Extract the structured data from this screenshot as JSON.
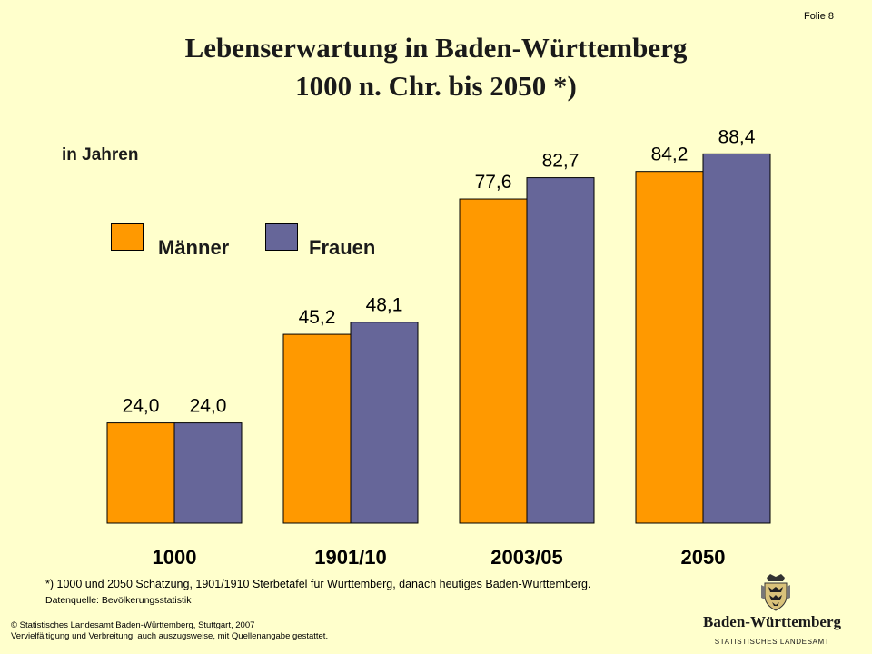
{
  "slide": {
    "number_label": "Folie 8"
  },
  "chart_data": {
    "type": "bar",
    "title": "Lebenserwartung in Baden-Württemberg",
    "subtitle": "1000 n. Chr. bis 2050 *)",
    "ylabel": "in Jahren",
    "categories": [
      "1000",
      "1901/10",
      "2003/05",
      "2050"
    ],
    "series": [
      {
        "name": "Männer",
        "color": "#FF9900",
        "values": [
          24.0,
          45.2,
          77.6,
          84.2
        ],
        "labels": [
          "24,0",
          "45,2",
          "77,6",
          "84,2"
        ]
      },
      {
        "name": "Frauen",
        "color": "#666699",
        "values": [
          24.0,
          48.1,
          82.7,
          88.4
        ],
        "labels": [
          "24,0",
          "48,1",
          "82,7",
          "88,4"
        ]
      }
    ],
    "ylim": [
      0,
      100
    ],
    "grid": false,
    "legend": "upper-left"
  },
  "footnote": "*) 1000 und 2050 Schätzung, 1901/1910 Sterbetafel für Württemberg, danach heutiges Baden-Württemberg.",
  "source": "Datenquelle: Bevölkerungsstatistik",
  "copyright": {
    "line1": "© Statistisches Landesamt Baden-Württemberg, Stuttgart, 2007",
    "line2": "Vervielfältigung und Verbreitung, auch auszugsweise, mit Quellenangabe gestattet."
  },
  "logo": {
    "name": "Baden-Württemberg",
    "subtitle": "STATISTISCHES LANDESAMT",
    "crest_icon": "coat-of-arms-icon"
  }
}
